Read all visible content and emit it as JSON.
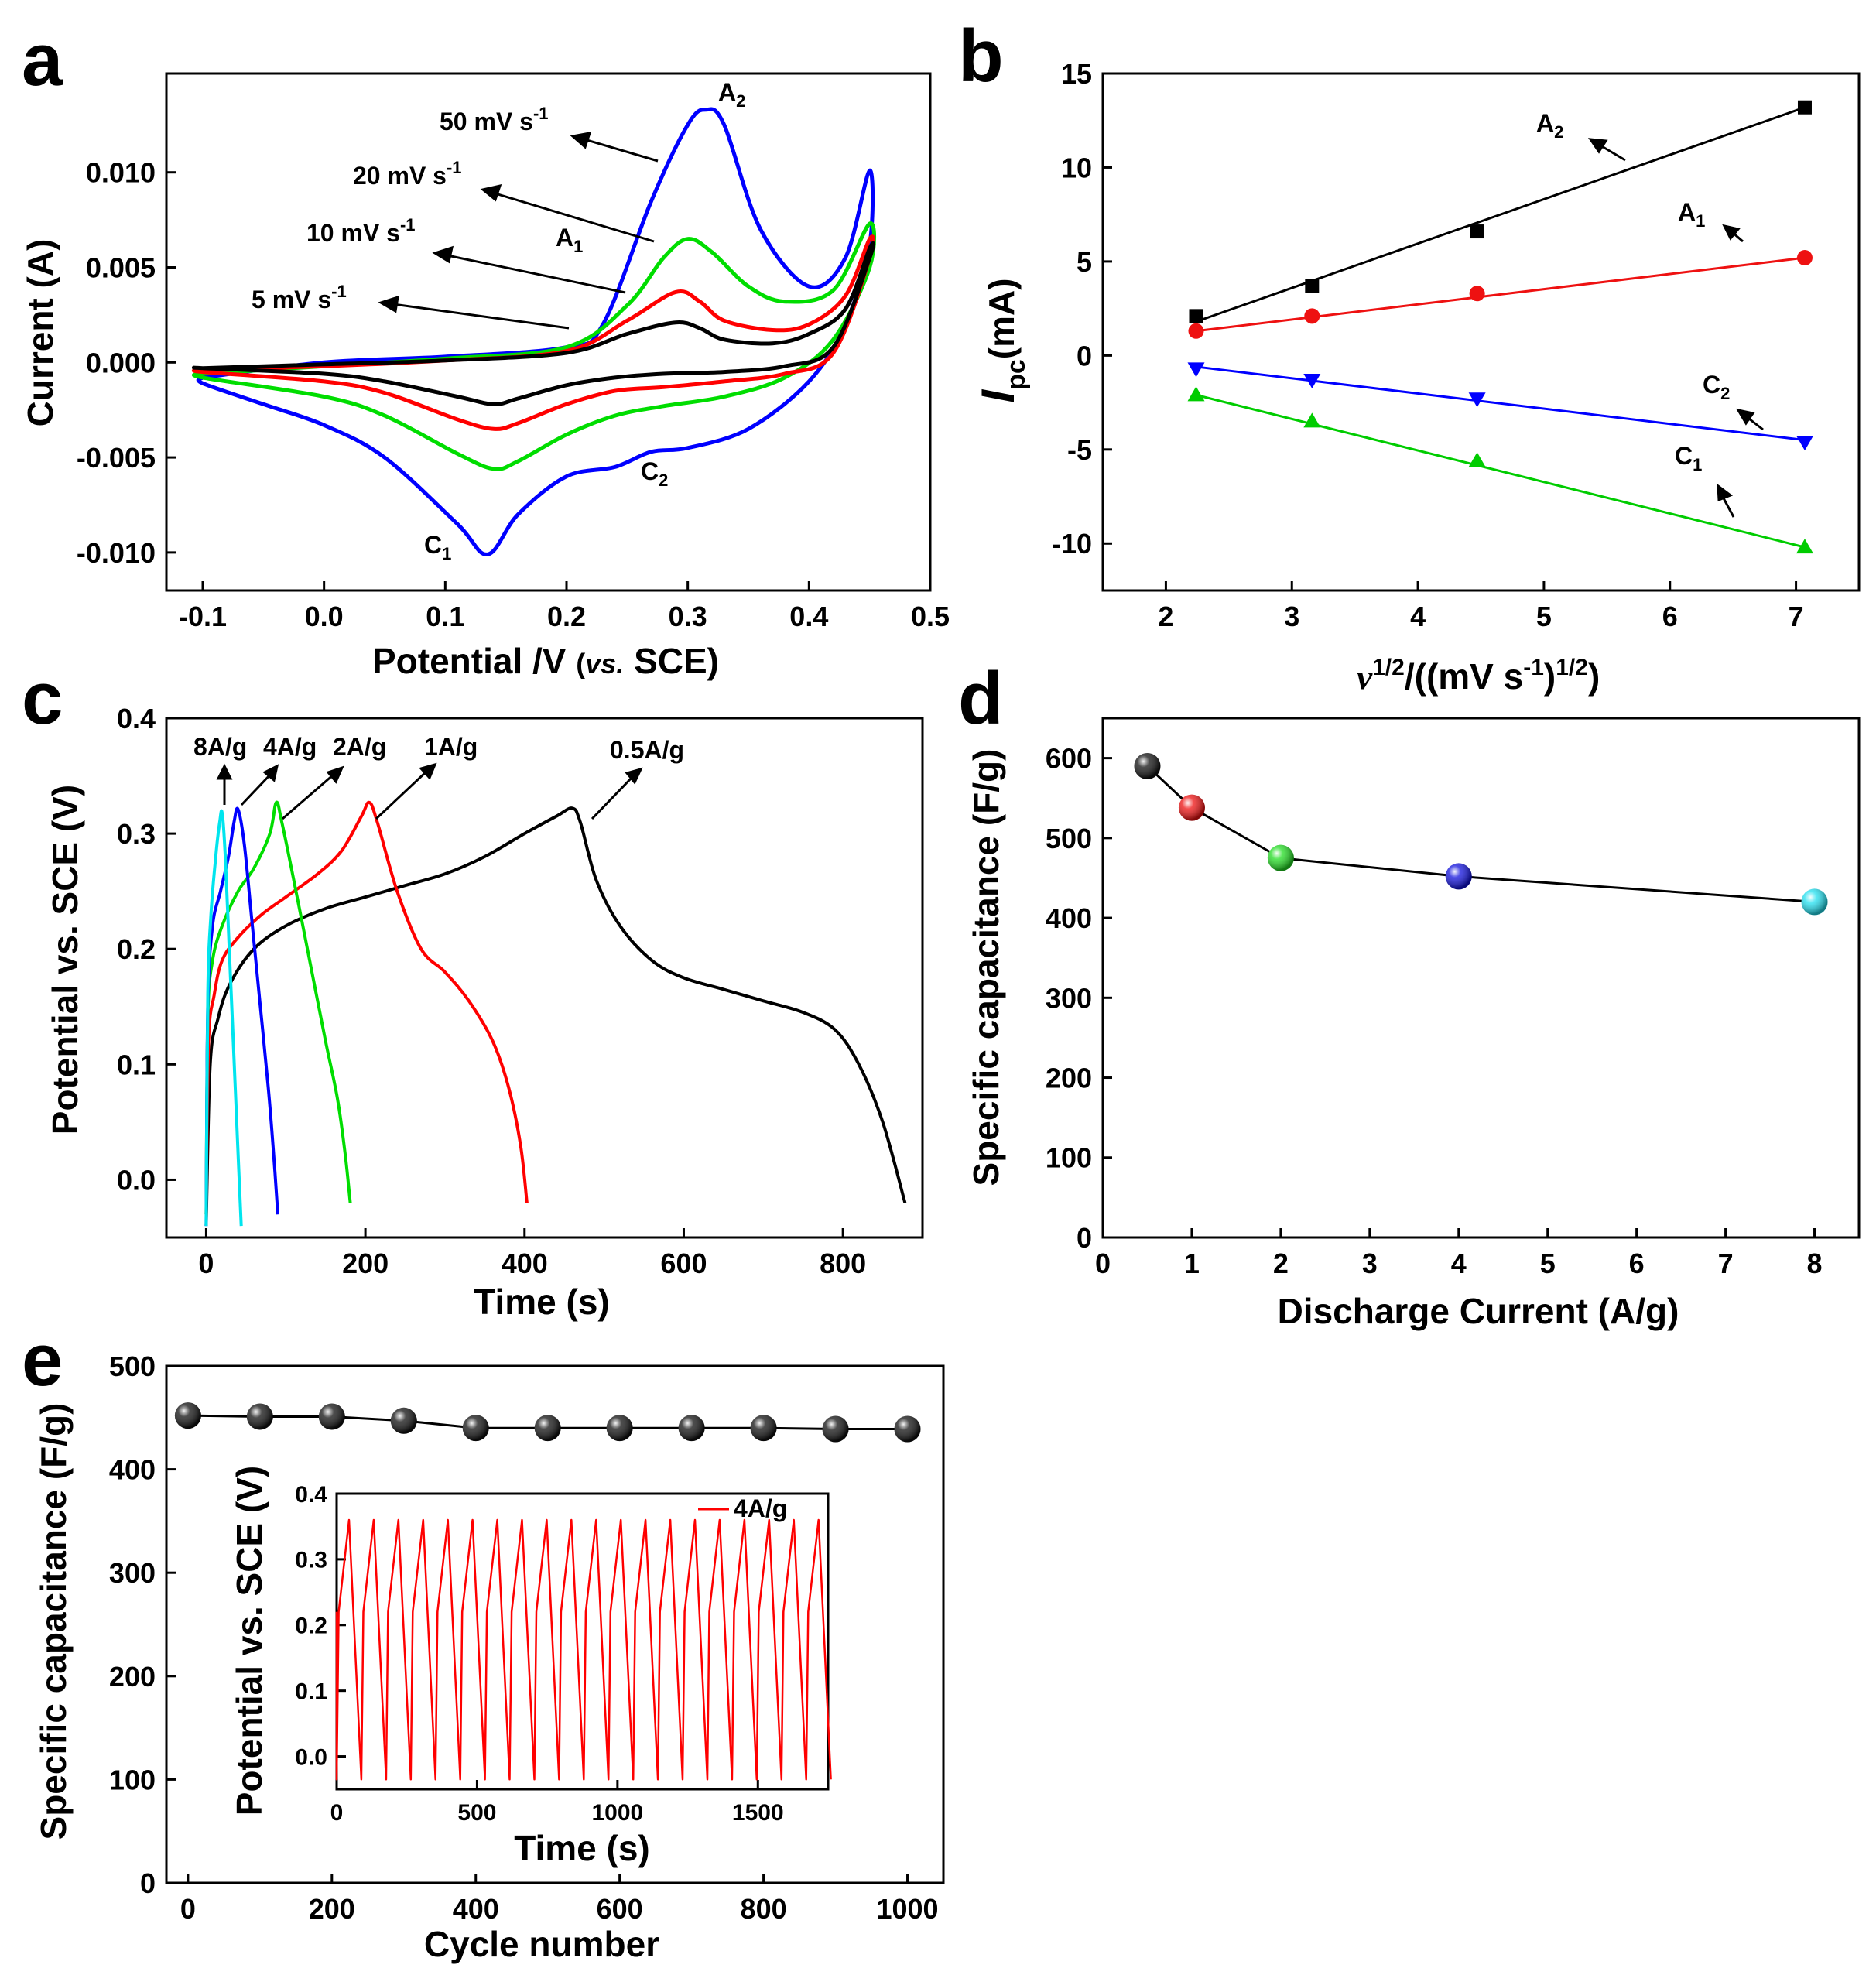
{
  "panels": [
    {
      "id": "a",
      "label": "a",
      "xlabel": "Potential /V (vs. SCE)",
      "xlabel_parts": [
        "Potential /V ",
        "(",
        "vs.",
        " SCE)"
      ],
      "ylabel": "Current (A)",
      "xlim": [
        -0.13,
        0.5
      ],
      "ylim": [
        -0.012,
        0.0152
      ],
      "xticks": [
        -0.1,
        0.0,
        0.1,
        0.2,
        0.3,
        0.4,
        0.5
      ],
      "xtick_labels": [
        "-0.1",
        "0.0",
        "0.1",
        "0.2",
        "0.3",
        "0.4",
        "0.5"
      ],
      "yticks": [
        -0.01,
        -0.005,
        0.0,
        0.005,
        0.01
      ],
      "ytick_labels": [
        "-0.010",
        "-0.005",
        "0.000",
        "0.005",
        "0.010"
      ],
      "annotations": [
        {
          "base": "A",
          "sub": "2"
        },
        {
          "base": "A",
          "sub": "1"
        },
        {
          "base": "C",
          "sub": "2"
        },
        {
          "base": "C",
          "sub": "1"
        }
      ],
      "legend": [
        {
          "text": "50 mV s",
          "sup": "-1"
        },
        {
          "text": "20 mV s",
          "sup": "-1"
        },
        {
          "text": "10 mV s",
          "sup": "-1"
        },
        {
          "text": "5 mV s",
          "sup": "-1"
        }
      ]
    },
    {
      "id": "b",
      "label": "b",
      "xlabel_parts": [
        "v",
        "1/2",
        "/((mV s",
        "-1",
        ")",
        "1/2",
        ")"
      ],
      "ylabel_parts": [
        "I",
        "pc",
        "(mA)"
      ],
      "xlim": [
        1.5,
        7.5
      ],
      "ylim": [
        -12.5,
        15
      ],
      "xticks": [
        2,
        3,
        4,
        5,
        6,
        7
      ],
      "xtick_labels": [
        "2",
        "3",
        "4",
        "5",
        "6",
        "7"
      ],
      "yticks": [
        -10,
        -5,
        0,
        5,
        10,
        15
      ],
      "ytick_labels": [
        "-10",
        "-5",
        "0",
        "5",
        "10",
        "15"
      ],
      "annotations": [
        {
          "base": "A",
          "sub": "2"
        },
        {
          "base": "A",
          "sub": "1"
        },
        {
          "base": "C",
          "sub": "2"
        },
        {
          "base": "C",
          "sub": "1"
        }
      ]
    },
    {
      "id": "c",
      "label": "c",
      "xlabel": "Time (s)",
      "ylabel": "Potential vs. SCE (V)",
      "xlim": [
        -50,
        900
      ],
      "ylim": [
        -0.05,
        0.4
      ],
      "xticks": [
        0,
        200,
        400,
        600,
        800
      ],
      "xtick_labels": [
        "0",
        "200",
        "400",
        "600",
        "800"
      ],
      "yticks": [
        0.0,
        0.1,
        0.2,
        0.3,
        0.4
      ],
      "ytick_labels": [
        "0.0",
        "0.1",
        "0.2",
        "0.3",
        "0.4"
      ],
      "annotations": [
        "8A/g",
        "4A/g",
        "2A/g",
        "1A/g",
        "0.5A/g"
      ]
    },
    {
      "id": "d",
      "label": "d",
      "xlabel": "Discharge Current (A/g)",
      "ylabel": "Specific capacitance (F/g)",
      "xlim": [
        0,
        8.5
      ],
      "ylim": [
        0,
        650
      ],
      "xticks": [
        0,
        1,
        2,
        3,
        4,
        5,
        6,
        7,
        8
      ],
      "xtick_labels": [
        "0",
        "1",
        "2",
        "3",
        "4",
        "5",
        "6",
        "7",
        "8"
      ],
      "yticks": [
        0,
        100,
        200,
        300,
        400,
        500,
        600
      ],
      "ytick_labels": [
        "0",
        "100",
        "200",
        "300",
        "400",
        "500",
        "600"
      ]
    },
    {
      "id": "e",
      "label": "e",
      "xlabel": "Cycle number",
      "ylabel": "Specific capacitance (F/g)",
      "xlim": [
        -30,
        1050
      ],
      "ylim": [
        0,
        500
      ],
      "xticks": [
        0,
        200,
        400,
        600,
        800,
        1000
      ],
      "xtick_labels": [
        "0",
        "200",
        "400",
        "600",
        "800",
        "1000"
      ],
      "yticks": [
        0,
        100,
        200,
        300,
        400,
        500
      ],
      "ytick_labels": [
        "0",
        "100",
        "200",
        "300",
        "400",
        "500"
      ],
      "inset": {
        "xlabel": "Time (s)",
        "ylabel": "Potential vs. SCE (V)",
        "legend": "4A/g",
        "xlim": [
          0,
          1750
        ],
        "ylim": [
          -0.05,
          0.4
        ],
        "xticks": [
          0,
          500,
          1000,
          1500
        ],
        "xtick_labels": [
          "0",
          "500",
          "1000",
          "1500"
        ],
        "yticks": [
          0.0,
          0.1,
          0.2,
          0.3,
          0.4
        ],
        "ytick_labels": [
          "0.0",
          "0.1",
          "0.2",
          "0.3",
          "0.4"
        ]
      }
    }
  ],
  "chart_data": [
    {
      "panel": "a",
      "type": "line",
      "title": "",
      "xlabel": "Potential /V (vs. SCE)",
      "ylabel": "Current (A)",
      "xlim": [
        -0.13,
        0.5
      ],
      "ylim": [
        -0.012,
        0.0152
      ],
      "series": [
        {
          "name": "50 mV s-1",
          "color": "#0000ff",
          "x": [
            -0.1,
            0.0,
            0.1,
            0.2,
            0.23,
            0.27,
            0.3,
            0.315,
            0.33,
            0.36,
            0.4,
            0.43,
            0.45,
            0.45,
            0.43,
            0.4,
            0.35,
            0.3,
            0.27,
            0.24,
            0.2,
            0.16,
            0.135,
            0.11,
            0.05,
            0.0,
            -0.05,
            -0.1
          ],
          "y": [
            -0.0008,
            0.0,
            0.0003,
            0.0008,
            0.002,
            0.0085,
            0.0125,
            0.0133,
            0.0125,
            0.007,
            0.004,
            0.0055,
            0.0101,
            0.0062,
            0.002,
            -0.001,
            -0.0035,
            -0.0045,
            -0.0047,
            -0.0055,
            -0.006,
            -0.008,
            -0.0101,
            -0.0085,
            -0.005,
            -0.0033,
            -0.0022,
            -0.0011
          ]
        },
        {
          "name": "20 mV s-1",
          "color": "#00dd00",
          "x": [
            -0.1,
            0.0,
            0.1,
            0.2,
            0.25,
            0.28,
            0.3,
            0.32,
            0.35,
            0.38,
            0.42,
            0.45,
            0.45,
            0.42,
            0.38,
            0.33,
            0.28,
            0.24,
            0.2,
            0.16,
            0.14,
            0.11,
            0.05,
            0.0,
            -0.1
          ],
          "y": [
            -0.0006,
            -0.0002,
            0.0002,
            0.0008,
            0.003,
            0.0055,
            0.0065,
            0.0058,
            0.004,
            0.0032,
            0.0038,
            0.0073,
            0.005,
            0.0012,
            -0.0008,
            -0.0018,
            -0.0023,
            -0.0028,
            -0.0038,
            -0.0052,
            -0.0056,
            -0.0048,
            -0.0028,
            -0.0018,
            -0.0008
          ]
        },
        {
          "name": "10 mV s-1",
          "color": "#ff0000",
          "x": [
            -0.1,
            0.0,
            0.1,
            0.2,
            0.25,
            0.29,
            0.31,
            0.33,
            0.37,
            0.4,
            0.43,
            0.45,
            0.45,
            0.42,
            0.38,
            0.33,
            0.28,
            0.24,
            0.2,
            0.16,
            0.14,
            0.11,
            0.05,
            0.0,
            -0.1
          ],
          "y": [
            -0.0004,
            -0.0002,
            0.0001,
            0.0006,
            0.0022,
            0.0037,
            0.0032,
            0.0022,
            0.0017,
            0.002,
            0.0035,
            0.0065,
            0.0055,
            0.0005,
            -0.0006,
            -0.001,
            -0.0013,
            -0.0015,
            -0.0022,
            -0.0032,
            -0.0035,
            -0.003,
            -0.0016,
            -0.001,
            -0.0005
          ]
        },
        {
          "name": "5 mV s-1",
          "color": "#000000",
          "x": [
            -0.1,
            0.0,
            0.1,
            0.2,
            0.25,
            0.29,
            0.31,
            0.33,
            0.37,
            0.4,
            0.43,
            0.45,
            0.45,
            0.42,
            0.38,
            0.33,
            0.28,
            0.24,
            0.2,
            0.16,
            0.14,
            0.11,
            0.05,
            0.0,
            -0.1
          ],
          "y": [
            -0.0003,
            -0.0001,
            0.0001,
            0.0005,
            0.0015,
            0.0021,
            0.0018,
            0.0012,
            0.001,
            0.0015,
            0.0028,
            0.006,
            0.0055,
            0.0008,
            -0.0002,
            -0.0005,
            -0.0006,
            -0.0008,
            -0.0012,
            -0.0019,
            -0.0022,
            -0.0018,
            -0.001,
            -0.0006,
            -0.0003
          ]
        }
      ]
    },
    {
      "panel": "b",
      "type": "scatter",
      "title": "",
      "xlabel": "v1/2/((mV s-1)1/2)",
      "ylabel": "Ipc(mA)",
      "xlim": [
        1.5,
        7.5
      ],
      "ylim": [
        -12.5,
        15
      ],
      "x": [
        2.24,
        3.16,
        4.47,
        7.07
      ],
      "series": [
        {
          "name": "A2",
          "color": "#000000",
          "marker": "square",
          "values": [
            2.1,
            3.7,
            6.6,
            13.2
          ],
          "fit": [
            1.8,
            13.2
          ]
        },
        {
          "name": "A1",
          "color": "#ee1111",
          "marker": "circle",
          "values": [
            1.3,
            2.1,
            3.3,
            5.2
          ],
          "fit": [
            1.3,
            5.2
          ]
        },
        {
          "name": "C2",
          "color": "#0000ff",
          "marker": "triangle-down",
          "values": [
            -0.7,
            -1.3,
            -2.3,
            -4.6
          ],
          "fit": [
            -0.6,
            -4.5
          ]
        },
        {
          "name": "C1",
          "color": "#00cc00",
          "marker": "triangle-up",
          "values": [
            -2.1,
            -3.5,
            -5.6,
            -10.2
          ],
          "fit": [
            -2.1,
            -10.2
          ]
        }
      ]
    },
    {
      "panel": "c",
      "type": "line",
      "title": "",
      "xlabel": "Time (s)",
      "ylabel": "Potential vs. SCE (V)",
      "xlim": [
        -50,
        900
      ],
      "ylim": [
        -0.05,
        0.4
      ],
      "series": [
        {
          "name": "0.5A/g",
          "color": "#000000",
          "x": [
            0,
            5,
            15,
            30,
            60,
            100,
            150,
            200,
            250,
            300,
            350,
            400,
            440,
            460,
            470,
            490,
            520,
            560,
            600,
            650,
            700,
            750,
            790,
            820,
            850,
            878
          ],
          "y": [
            -0.04,
            0.1,
            0.14,
            0.17,
            0.2,
            0.22,
            0.235,
            0.245,
            0.255,
            0.265,
            0.28,
            0.3,
            0.315,
            0.322,
            0.31,
            0.26,
            0.22,
            0.19,
            0.175,
            0.165,
            0.155,
            0.145,
            0.13,
            0.1,
            0.05,
            -0.02
          ]
        },
        {
          "name": "1A/g",
          "color": "#ff0000",
          "x": [
            0,
            3,
            10,
            20,
            40,
            70,
            100,
            140,
            170,
            195,
            205,
            215,
            240,
            270,
            300,
            330,
            360,
            380,
            395,
            403
          ],
          "y": [
            -0.03,
            0.12,
            0.16,
            0.19,
            0.21,
            0.23,
            0.245,
            0.265,
            0.285,
            0.315,
            0.327,
            0.31,
            0.25,
            0.2,
            0.18,
            0.155,
            0.12,
            0.08,
            0.03,
            -0.02
          ]
        },
        {
          "name": "2A/g",
          "color": "#00dd00",
          "x": [
            0,
            2,
            8,
            20,
            40,
            60,
            80,
            88,
            95,
            110,
            130,
            150,
            165,
            175,
            181
          ],
          "y": [
            -0.03,
            0.14,
            0.19,
            0.22,
            0.25,
            0.27,
            0.3,
            0.327,
            0.31,
            0.26,
            0.19,
            0.12,
            0.07,
            0.02,
            -0.02
          ]
        },
        {
          "name": "4A/g",
          "color": "#0000ff",
          "x": [
            0,
            2,
            8,
            18,
            28,
            35,
            40,
            48,
            58,
            68,
            78,
            85,
            90
          ],
          "y": [
            -0.04,
            0.15,
            0.22,
            0.25,
            0.28,
            0.31,
            0.321,
            0.29,
            0.22,
            0.15,
            0.08,
            0.02,
            -0.03
          ]
        },
        {
          "name": "8A/g",
          "color": "#00e5ee",
          "x": [
            0,
            2,
            6,
            12,
            17,
            20,
            24,
            29,
            34,
            39,
            44
          ],
          "y": [
            -0.04,
            0.16,
            0.23,
            0.28,
            0.31,
            0.318,
            0.28,
            0.2,
            0.12,
            0.04,
            -0.04
          ]
        }
      ]
    },
    {
      "panel": "d",
      "type": "line",
      "title": "",
      "xlabel": "Discharge Current (A/g)",
      "ylabel": "Specific capacitance (F/g)",
      "xlim": [
        0,
        8.5
      ],
      "ylim": [
        0,
        650
      ],
      "x": [
        0.5,
        1,
        2,
        4,
        8
      ],
      "values": [
        590,
        538,
        475,
        452,
        420
      ],
      "point_colors": [
        "#111111",
        "#ee1111",
        "#22dd22",
        "#1111dd",
        "#22e0f0"
      ]
    },
    {
      "panel": "e",
      "type": "line",
      "title": "",
      "xlabel": "Cycle number",
      "ylabel": "Specific capacitance (F/g)",
      "xlim": [
        -30,
        1050
      ],
      "ylim": [
        0,
        500
      ],
      "x": [
        0,
        100,
        200,
        300,
        400,
        500,
        600,
        700,
        800,
        900,
        1000
      ],
      "values": [
        452,
        451,
        451,
        447,
        440,
        440,
        440,
        440,
        440,
        439,
        439
      ],
      "inset": {
        "type": "line",
        "name": "4A/g",
        "color": "#ff0000",
        "xlabel": "Time (s)",
        "ylabel": "Potential vs. SCE (V)",
        "cycle_period_s": 88,
        "cycles": 20,
        "v_max": 0.36,
        "v_min": -0.035,
        "charge_knee_v": 0.22
      }
    }
  ]
}
